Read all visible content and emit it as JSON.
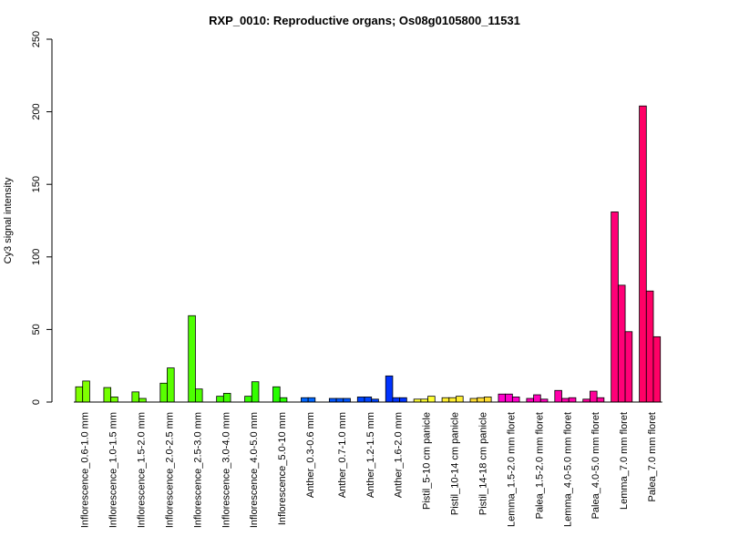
{
  "chart_data": {
    "type": "bar",
    "title": "RXP_0010: Reproductive organs; Os08g0105800_11531",
    "xlabel": "",
    "ylabel": "Cy3 signal intensity",
    "ylim": [
      0,
      250
    ],
    "yticks": [
      0,
      50,
      100,
      150,
      200,
      250
    ],
    "grid": false,
    "legend": "none",
    "groups": [
      {
        "label": "Inflorescence_0.6-1.0 mm",
        "color": "#7FFF00",
        "values": [
          10.5,
          14.5
        ]
      },
      {
        "label": "Inflorescence_1.0-1.5 mm",
        "color": "#73FF00",
        "values": [
          10,
          3.5
        ]
      },
      {
        "label": "Inflorescence_1.5-2.0 mm",
        "color": "#66FF00",
        "values": [
          7,
          2.5
        ]
      },
      {
        "label": "Inflorescence_2.0-2.5 mm",
        "color": "#59FF00",
        "values": [
          13,
          23.5
        ]
      },
      {
        "label": "Inflorescence_2.5-3.0 mm",
        "color": "#4DFF00",
        "values": [
          59.5,
          9
        ]
      },
      {
        "label": "Inflorescence_3.0-4.0 mm",
        "color": "#40FF00",
        "values": [
          4,
          6
        ]
      },
      {
        "label": "Inflorescence_4.0-5.0 mm",
        "color": "#33FF00",
        "values": [
          4,
          14
        ]
      },
      {
        "label": "Inflorescence_5.0-10 mm",
        "color": "#26FF00",
        "values": [
          10.5,
          3
        ]
      },
      {
        "label": "Anther_0.3-0.6 mm",
        "color": "#0066FF",
        "values": [
          3,
          3
        ]
      },
      {
        "label": "Anther_0.7-1.0 mm",
        "color": "#0055FF",
        "values": [
          2.5,
          2.5,
          2.5
        ]
      },
      {
        "label": "Anther_1.2-1.5 mm",
        "color": "#0044FF",
        "values": [
          3.5,
          3.5,
          2
        ]
      },
      {
        "label": "Anther_1.6-2.0 mm",
        "color": "#0033FF",
        "values": [
          18,
          3,
          3
        ]
      },
      {
        "label": "Pistil_5-10 cm panicle",
        "color": "#FFFF33",
        "values": [
          2,
          2,
          4
        ]
      },
      {
        "label": "Pistil_10-14 cm panicle",
        "color": "#FFEE33",
        "values": [
          3,
          3,
          4
        ]
      },
      {
        "label": "Pistil_14-18 cm panicle",
        "color": "#FFDD33",
        "values": [
          2.5,
          3,
          3.5
        ]
      },
      {
        "label": "Lemma_1.5-2.0 mm floret",
        "color": "#FF00CC",
        "values": [
          5.5,
          5.5,
          3.5
        ]
      },
      {
        "label": "Palea_1.5-2.0 mm floret",
        "color": "#FF00BB",
        "values": [
          2.5,
          5,
          2
        ]
      },
      {
        "label": "Lemma_4.0-5.0 mm floret",
        "color": "#FF00AA",
        "values": [
          8,
          2.5,
          3
        ]
      },
      {
        "label": "Palea_4.0-5.0 mm floret",
        "color": "#FF0099",
        "values": [
          2,
          7.5,
          3
        ]
      },
      {
        "label": "Lemma_7.0 mm floret",
        "color": "#FF0077",
        "values": [
          131,
          80.5,
          48.5
        ]
      },
      {
        "label": "Palea_7.0 mm floret",
        "color": "#FF0066",
        "values": [
          204,
          76.5,
          45
        ]
      }
    ]
  }
}
